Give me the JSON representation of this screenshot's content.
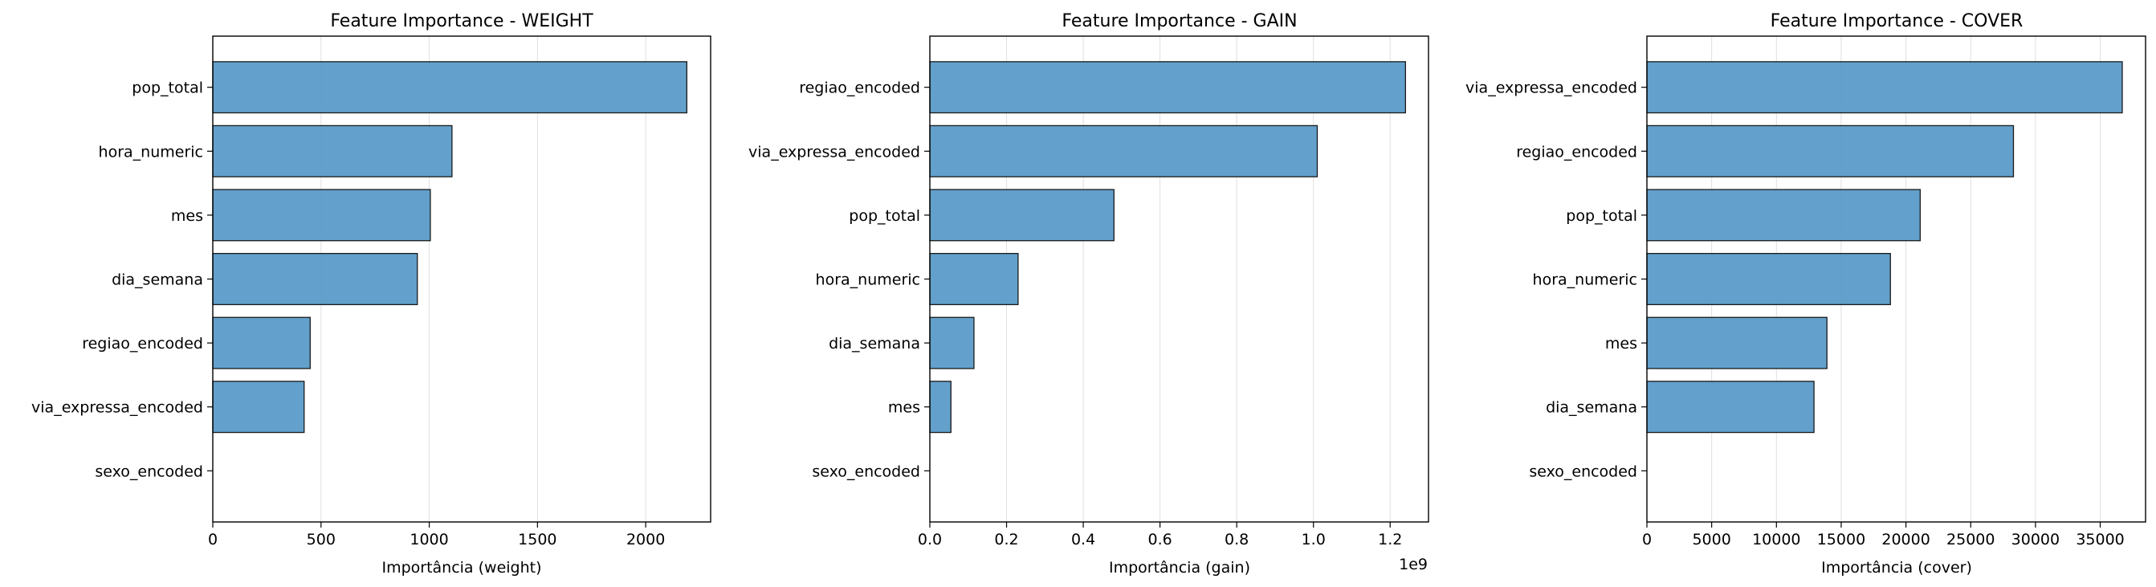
{
  "chart_data": [
    {
      "type": "bar",
      "orientation": "horizontal",
      "title": "Feature Importance - WEIGHT",
      "xlabel": "Importância (weight)",
      "ylabel": "",
      "categories": [
        "pop_total",
        "hora_numeric",
        "mes",
        "dia_semana",
        "regiao_encoded",
        "via_expressa_encoded",
        "sexo_encoded"
      ],
      "values": [
        2190,
        1105,
        1005,
        945,
        450,
        422,
        0
      ],
      "xlim": [
        0,
        2300
      ],
      "xticks": [
        0,
        500,
        1000,
        1500,
        2000
      ],
      "xtick_labels": [
        "0",
        "500",
        "1000",
        "1500",
        "2000"
      ],
      "offset_label": "",
      "grid": "x",
      "bar_color": "#5b9bc8"
    },
    {
      "type": "bar",
      "orientation": "horizontal",
      "title": "Feature Importance - GAIN",
      "xlabel": "Importância (gain)",
      "ylabel": "",
      "categories": [
        "regiao_encoded",
        "via_expressa_encoded",
        "pop_total",
        "hora_numeric",
        "dia_semana",
        "mes",
        "sexo_encoded"
      ],
      "values": [
        1240000000,
        1010000000,
        480000000,
        230000000,
        115000000,
        55000000,
        0
      ],
      "xlim": [
        0,
        1300000000
      ],
      "xticks": [
        0,
        200000000,
        400000000,
        600000000,
        800000000,
        1000000000,
        1200000000
      ],
      "xtick_labels": [
        "0.0",
        "0.2",
        "0.4",
        "0.6",
        "0.8",
        "1.0",
        "1.2"
      ],
      "offset_label": "1e9",
      "grid": "x",
      "bar_color": "#5b9bc8"
    },
    {
      "type": "bar",
      "orientation": "horizontal",
      "title": "Feature Importance - COVER",
      "xlabel": "Importância (cover)",
      "ylabel": "",
      "categories": [
        "via_expressa_encoded",
        "regiao_encoded",
        "pop_total",
        "hora_numeric",
        "mes",
        "dia_semana",
        "sexo_encoded"
      ],
      "values": [
        36700,
        28300,
        21100,
        18800,
        13900,
        12900,
        0
      ],
      "xlim": [
        0,
        38500
      ],
      "xticks": [
        0,
        5000,
        10000,
        15000,
        20000,
        25000,
        30000,
        35000
      ],
      "xtick_labels": [
        "0",
        "5000",
        "10000",
        "15000",
        "20000",
        "25000",
        "30000",
        "35000"
      ],
      "offset_label": "",
      "grid": "x",
      "bar_color": "#5b9bc8"
    }
  ]
}
